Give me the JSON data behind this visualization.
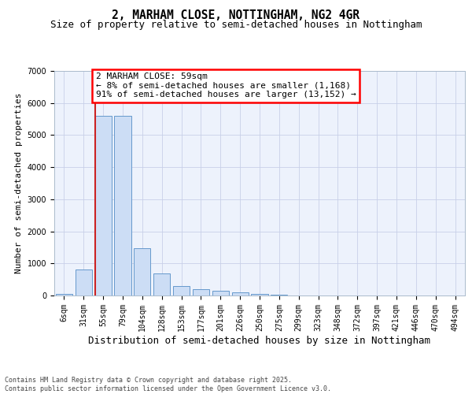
{
  "title": "2, MARHAM CLOSE, NOTTINGHAM, NG2 4GR",
  "subtitle": "Size of property relative to semi-detached houses in Nottingham",
  "xlabel": "Distribution of semi-detached houses by size in Nottingham",
  "ylabel": "Number of semi-detached properties",
  "categories": [
    "6sqm",
    "31sqm",
    "55sqm",
    "79sqm",
    "104sqm",
    "128sqm",
    "153sqm",
    "177sqm",
    "201sqm",
    "226sqm",
    "250sqm",
    "275sqm",
    "299sqm",
    "323sqm",
    "348sqm",
    "372sqm",
    "397sqm",
    "421sqm",
    "446sqm",
    "470sqm",
    "494sqm"
  ],
  "values": [
    50,
    800,
    5600,
    5600,
    1480,
    680,
    290,
    200,
    140,
    100,
    60,
    30,
    10,
    5,
    3,
    2,
    1,
    1,
    0,
    0,
    0
  ],
  "bar_color": "#ccddf5",
  "bar_edge_color": "#6699cc",
  "vline_color": "#cc2222",
  "vline_x_index": 2,
  "annotation_text": "2 MARHAM CLOSE: 59sqm\n← 8% of semi-detached houses are smaller (1,168)\n91% of semi-detached houses are larger (13,152) →",
  "ann_box_color": "white",
  "ann_edge_color": "red",
  "ylim": [
    0,
    7000
  ],
  "yticks": [
    0,
    1000,
    2000,
    3000,
    4000,
    5000,
    6000,
    7000
  ],
  "plot_bg": "#edf2fc",
  "grid_color": "#c8d0e8",
  "footer": "Contains HM Land Registry data © Crown copyright and database right 2025.\nContains public sector information licensed under the Open Government Licence v3.0.",
  "title_fontsize": 10.5,
  "subtitle_fontsize": 9,
  "tick_fontsize": 7,
  "ylabel_fontsize": 8,
  "xlabel_fontsize": 9,
  "ann_fontsize": 8,
  "footer_fontsize": 6
}
